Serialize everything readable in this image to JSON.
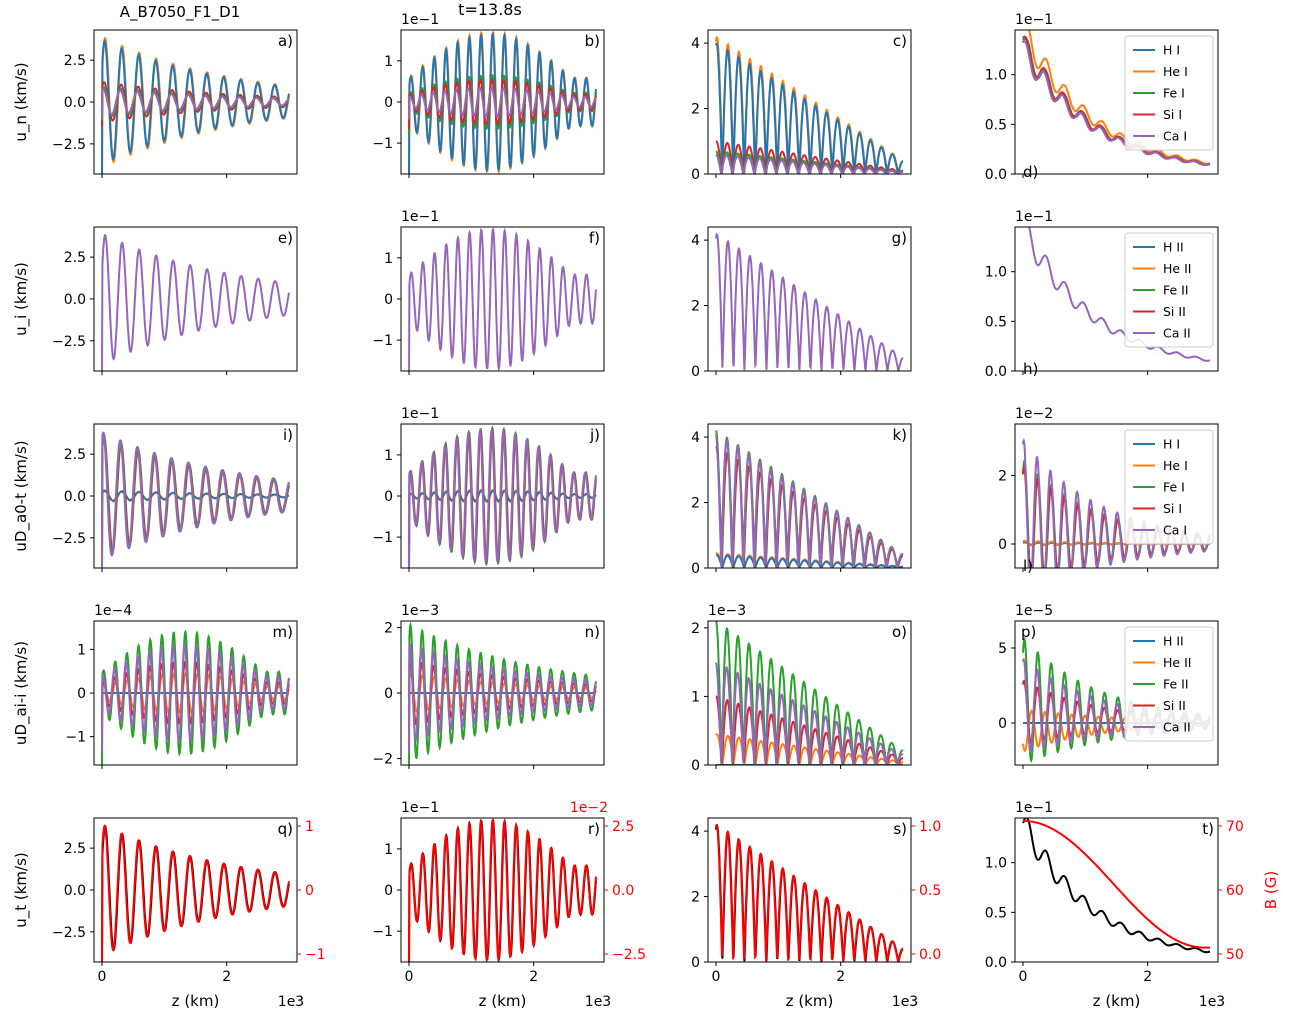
{
  "figure": {
    "suptitle": "A_B7050_F1_D1",
    "time_label": "t=13.8s",
    "xlabel": "z (km)",
    "x_exponent": "1e3",
    "x_ticks": [
      "0",
      "2"
    ]
  },
  "row_ylabels": [
    "u_n (km/s)",
    "u_i (km/s)",
    "uD_a0-t (km/s)",
    "uD_ai-i (km/s)",
    "u_t (km/s)"
  ],
  "legends": {
    "neutral": [
      "H I",
      "He I",
      "Fe I",
      "Si I",
      "Ca I"
    ],
    "ion": [
      "H II",
      "He II",
      "Fe II",
      "Si II",
      "Ca II"
    ]
  },
  "colors": {
    "H": "#1f77b4",
    "He": "#ff7f0e",
    "Fe": "#2ca02c",
    "Si": "#d62728",
    "Ca": "#9467bd",
    "total": "#000000",
    "twin": "#ff0000"
  },
  "twin_axes": {
    "q": {
      "ticks": [
        "1",
        "0",
        "−1"
      ]
    },
    "r": {
      "exponent": "1e−2",
      "ticks": [
        "2.5",
        "0.0",
        "−2.5"
      ]
    },
    "s": {
      "ticks": [
        "1.0",
        "0.5",
        "0.0"
      ]
    },
    "t": {
      "ticks": [
        "70",
        "60",
        "50"
      ],
      "label": "B (G)"
    }
  },
  "chart_data": [
    {
      "panel": "a",
      "type": "line",
      "xlim": [
        0,
        3000
      ],
      "ylim": [
        -4.3,
        4.3
      ],
      "yticks": [
        "2.5",
        "0.0",
        "−2.5"
      ],
      "exponent": "",
      "osc": true,
      "decay": "exp",
      "base_amp": 3.9,
      "cycles": 11,
      "series": [
        {
          "name": "He I",
          "amp": 3.9
        },
        {
          "name": "H I",
          "amp": 3.7
        },
        {
          "name": "Si I",
          "amp": 1.2
        },
        {
          "name": "Fe I",
          "amp": 0.9
        },
        {
          "name": "Ca I",
          "amp": 0.8
        }
      ]
    },
    {
      "panel": "b",
      "type": "line",
      "xlim": [
        0,
        3000
      ],
      "ylim": [
        -1.75,
        1.75
      ],
      "yticks": [
        "1",
        "0",
        "−1"
      ],
      "exponent": "1e−1",
      "osc": true,
      "decay": "grow",
      "base_amp": 1.7,
      "cycles": 16,
      "series": [
        {
          "name": "He I",
          "amp": 1.7
        },
        {
          "name": "H I",
          "amp": 1.65
        },
        {
          "name": "Fe I",
          "amp": 0.65
        },
        {
          "name": "Si I",
          "amp": 0.55
        },
        {
          "name": "Ca I",
          "amp": 0.35
        }
      ]
    },
    {
      "panel": "c",
      "type": "line",
      "xlim": [
        0,
        3000
      ],
      "ylim": [
        0,
        4.4
      ],
      "yticks": [
        "4",
        "2",
        "0"
      ],
      "exponent": "",
      "osc": "abs",
      "decay": "lin",
      "base_amp": 4.2,
      "cycles": 17,
      "series": [
        {
          "name": "He I",
          "amp": 4.2
        },
        {
          "name": "H I",
          "amp": 4.0
        },
        {
          "name": "Si I",
          "amp": 1.0
        },
        {
          "name": "Fe I",
          "amp": 0.7
        },
        {
          "name": "Ca I",
          "amp": 0.6
        }
      ]
    },
    {
      "panel": "d",
      "type": "line",
      "xlim": [
        0,
        3000
      ],
      "ylim": [
        0,
        1.45
      ],
      "yticks": [
        "1.0",
        "0.5",
        "0.0"
      ],
      "exponent": "1e−1",
      "osc": "envelope",
      "decay": "exp",
      "base_amp": 1.3,
      "cycles": 10,
      "legend": "neutral",
      "label_pos": "bottom-left",
      "series": [
        {
          "name": "He I",
          "amp": 1.45
        },
        {
          "name": "H I",
          "amp": 1.3
        },
        {
          "name": "Fe I",
          "amp": 1.3
        },
        {
          "name": "Si I",
          "amp": 1.3
        },
        {
          "name": "Ca I",
          "amp": 1.25
        }
      ]
    },
    {
      "panel": "e",
      "type": "line",
      "xlim": [
        0,
        3000
      ],
      "ylim": [
        -4.3,
        4.3
      ],
      "yticks": [
        "2.5",
        "0.0",
        "−2.5"
      ],
      "exponent": "",
      "osc": true,
      "decay": "exp",
      "base_amp": 3.9,
      "cycles": 11,
      "series": [
        {
          "name": "Ca II",
          "amp": 3.9
        }
      ]
    },
    {
      "panel": "f",
      "type": "line",
      "xlim": [
        0,
        3000
      ],
      "ylim": [
        -1.75,
        1.75
      ],
      "yticks": [
        "1",
        "0",
        "−1"
      ],
      "exponent": "1e−1",
      "osc": true,
      "decay": "grow",
      "base_amp": 1.7,
      "cycles": 16,
      "series": [
        {
          "name": "Ca II",
          "amp": 1.7
        }
      ]
    },
    {
      "panel": "g",
      "type": "line",
      "xlim": [
        0,
        3000
      ],
      "ylim": [
        0,
        4.4
      ],
      "yticks": [
        "4",
        "2",
        "0"
      ],
      "exponent": "",
      "osc": "abs",
      "decay": "lin",
      "base_amp": 4.2,
      "cycles": 17,
      "series": [
        {
          "name": "Ca II",
          "amp": 4.2
        }
      ]
    },
    {
      "panel": "h",
      "type": "line",
      "xlim": [
        0,
        3000
      ],
      "ylim": [
        0,
        1.45
      ],
      "yticks": [
        "1.0",
        "0.5",
        "0.0"
      ],
      "exponent": "1e−1",
      "osc": "envelope",
      "decay": "exp",
      "base_amp": 1.45,
      "cycles": 10,
      "legend": "ion",
      "label_pos": "bottom-left",
      "series": [
        {
          "name": "Ca II",
          "amp": 1.45
        }
      ]
    },
    {
      "panel": "i",
      "type": "line",
      "xlim": [
        0,
        3000
      ],
      "ylim": [
        -4.3,
        4.3
      ],
      "yticks": [
        "2.5",
        "0.0",
        "−2.5"
      ],
      "exponent": "",
      "osc": true,
      "decay": "exp",
      "base_amp": 3.8,
      "cycles": 11,
      "series": [
        {
          "name": "He I",
          "amp": 0.35
        },
        {
          "name": "H I",
          "amp": 0.3
        },
        {
          "name": "Si I",
          "amp": 3.6
        },
        {
          "name": "Fe I",
          "amp": 3.8
        },
        {
          "name": "Ca I",
          "amp": 3.8
        }
      ]
    },
    {
      "panel": "j",
      "type": "line",
      "xlim": [
        0,
        3000
      ],
      "ylim": [
        -1.75,
        1.75
      ],
      "yticks": [
        "1",
        "0",
        "−1"
      ],
      "exponent": "1e−1",
      "osc": true,
      "decay": "grow",
      "base_amp": 1.65,
      "cycles": 16,
      "series": [
        {
          "name": "He I",
          "amp": 0.15
        },
        {
          "name": "H I",
          "amp": 0.12
        },
        {
          "name": "Fe I",
          "amp": 1.65
        },
        {
          "name": "Si I",
          "amp": 1.6
        },
        {
          "name": "Ca I",
          "amp": 1.6
        }
      ]
    },
    {
      "panel": "k",
      "type": "line",
      "xlim": [
        0,
        3000
      ],
      "ylim": [
        0,
        4.4
      ],
      "yticks": [
        "4",
        "2",
        "0"
      ],
      "exponent": "",
      "osc": "abs",
      "decay": "lin",
      "base_amp": 4.2,
      "cycles": 17,
      "series": [
        {
          "name": "He I",
          "amp": 0.45
        },
        {
          "name": "H I",
          "amp": 0.4
        },
        {
          "name": "Si I",
          "amp": 3.7
        },
        {
          "name": "Fe I",
          "amp": 4.2
        },
        {
          "name": "Ca I",
          "amp": 4.1
        }
      ]
    },
    {
      "panel": "l",
      "type": "line",
      "xlim": [
        0,
        3000
      ],
      "ylim": [
        -0.7,
        3.5
      ],
      "yticks": [
        "2",
        "0"
      ],
      "exponent": "1e−2",
      "osc": "damped",
      "decay": "exp",
      "base_amp": 3.2,
      "cycles": 14,
      "legend": "neutral",
      "label_pos": "bottom-left",
      "series": [
        {
          "name": "H I",
          "amp": 0.05
        },
        {
          "name": "He I",
          "amp": 0.1
        },
        {
          "name": "Fe I",
          "amp": 2.6
        },
        {
          "name": "Si I",
          "amp": 2.4
        },
        {
          "name": "Ca I",
          "amp": 3.2
        }
      ]
    },
    {
      "panel": "m",
      "type": "line",
      "xlim": [
        0,
        3000
      ],
      "ylim": [
        -1.65,
        1.65
      ],
      "yticks": [
        "1",
        "0",
        "−1"
      ],
      "exponent": "1e−4",
      "osc": true,
      "decay": "grow",
      "base_amp": 1.4,
      "cycles": 16,
      "series": [
        {
          "name": "H II",
          "amp": 0.0
        },
        {
          "name": "He II",
          "amp": 0.45
        },
        {
          "name": "Fe II",
          "amp": 1.4
        },
        {
          "name": "Si II",
          "amp": 0.7
        },
        {
          "name": "Ca II",
          "amp": 1.1
        }
      ]
    },
    {
      "panel": "n",
      "type": "line",
      "xlim": [
        0,
        3000
      ],
      "ylim": [
        -2.2,
        2.2
      ],
      "yticks": [
        "2",
        "0",
        "−2"
      ],
      "exponent": "1e−3",
      "osc": true,
      "decay": "exp",
      "base_amp": 2.1,
      "cycles": 16,
      "series": [
        {
          "name": "H II",
          "amp": 0.0
        },
        {
          "name": "He II",
          "amp": 0.6
        },
        {
          "name": "Fe II",
          "amp": 2.1
        },
        {
          "name": "Si II",
          "amp": 1.0
        },
        {
          "name": "Ca II",
          "amp": 1.5
        }
      ]
    },
    {
      "panel": "o",
      "type": "line",
      "xlim": [
        0,
        3000
      ],
      "ylim": [
        0,
        2.1
      ],
      "yticks": [
        "2",
        "1",
        "0"
      ],
      "exponent": "1e−3",
      "osc": "abs",
      "decay": "lin",
      "base_amp": 2.1,
      "cycles": 17,
      "series": [
        {
          "name": "He II",
          "amp": 0.45
        },
        {
          "name": "H II",
          "amp": 0.0
        },
        {
          "name": "Si II",
          "amp": 1.0
        },
        {
          "name": "Fe II",
          "amp": 2.1
        },
        {
          "name": "Ca II",
          "amp": 1.5
        }
      ]
    },
    {
      "panel": "p",
      "type": "line",
      "xlim": [
        0,
        3000
      ],
      "ylim": [
        -2.8,
        6.8
      ],
      "yticks": [
        "5",
        "0"
      ],
      "exponent": "1e−5",
      "osc": "damped",
      "decay": "exp",
      "base_amp": 6.0,
      "cycles": 14,
      "legend": "ion",
      "label_pos": "top-left",
      "series": [
        {
          "name": "H II",
          "amp": 0.0
        },
        {
          "name": "He II",
          "amp": -2.0
        },
        {
          "name": "Fe II",
          "amp": 6.0
        },
        {
          "name": "Si II",
          "amp": 3.0
        },
        {
          "name": "Ca II",
          "amp": 4.5
        }
      ]
    },
    {
      "panel": "q",
      "type": "line",
      "xlim": [
        0,
        3000
      ],
      "ylim": [
        -4.3,
        4.3
      ],
      "yticks": [
        "2.5",
        "0.0",
        "−2.5"
      ],
      "exponent": "",
      "osc": true,
      "decay": "exp",
      "base_amp": 3.9,
      "cycles": 11,
      "twin": "q",
      "series": [
        {
          "name": "",
          "amp": 3.9,
          "color": "total"
        },
        {
          "name": "",
          "amp": 3.9,
          "color": "twin"
        }
      ]
    },
    {
      "panel": "r",
      "type": "line",
      "xlim": [
        0,
        3000
      ],
      "ylim": [
        -1.75,
        1.75
      ],
      "yticks": [
        "1",
        "0",
        "−1"
      ],
      "exponent": "1e−1",
      "osc": true,
      "decay": "grow",
      "base_amp": 1.7,
      "cycles": 16,
      "twin": "r",
      "series": [
        {
          "name": "",
          "amp": 1.7,
          "color": "total"
        },
        {
          "name": "",
          "amp": 1.7,
          "color": "twin"
        }
      ]
    },
    {
      "panel": "s",
      "type": "line",
      "xlim": [
        0,
        3000
      ],
      "ylim": [
        0,
        4.4
      ],
      "yticks": [
        "4",
        "2",
        "0"
      ],
      "exponent": "",
      "osc": "abs",
      "decay": "lin",
      "base_amp": 4.2,
      "cycles": 17,
      "twin": "s",
      "series": [
        {
          "name": "",
          "amp": 4.2,
          "color": "total"
        },
        {
          "name": "",
          "amp": 4.2,
          "color": "twin"
        }
      ]
    },
    {
      "panel": "t",
      "type": "line",
      "xlim": [
        0,
        3000
      ],
      "ylim": [
        0,
        1.45
      ],
      "yticks": [
        "1.0",
        "0.5",
        "0.0"
      ],
      "exponent": "1e−1",
      "osc": "envelope",
      "decay": "exp",
      "base_amp": 1.4,
      "cycles": 10,
      "twin": "t",
      "series": [
        {
          "name": "",
          "amp": 1.4,
          "color": "total"
        },
        {
          "name": "B",
          "amp": 0,
          "color": "twin",
          "profile": "B"
        }
      ]
    }
  ]
}
